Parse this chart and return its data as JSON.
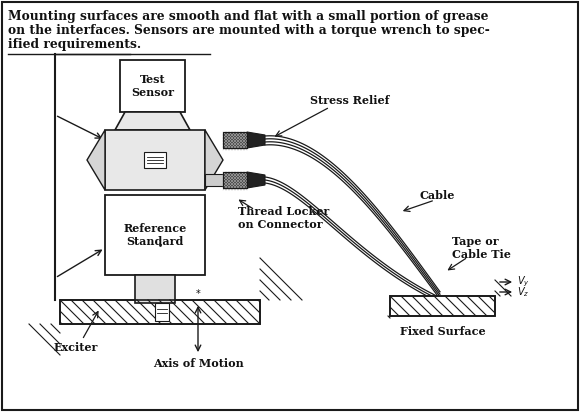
{
  "background_color": "#ffffff",
  "border_color": "#1a1a1a",
  "text_color": "#111111",
  "header_text_line1": "Mounting surfaces are smooth and flat with a small portion of grease",
  "header_text_line2": "on the interfaces. Sensors are mounted with a torque wrench to spec-",
  "header_text_line3": "ified requirements.",
  "labels": {
    "test_sensor": "Test\nSensor",
    "stress_relief": "Stress Relief",
    "cable": "Cable",
    "reference_standard": "Reference\nStandard",
    "thread_locker": "Thread Locker\non Connector",
    "tape_cable_tie": "Tape or\nCable Tie",
    "fixed_surface": "Fixed Surface",
    "exciter": "Exciter",
    "axis_of_motion": "Axis of Motion"
  },
  "figsize": [
    5.8,
    4.12
  ],
  "dpi": 100
}
